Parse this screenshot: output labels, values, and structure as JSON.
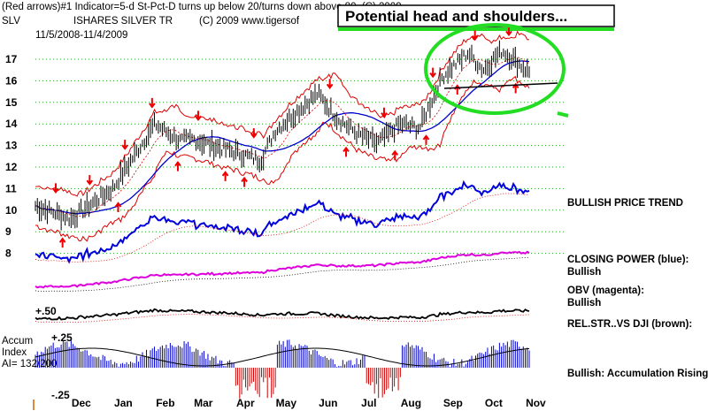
{
  "header": {
    "line1": "(Red arrows)#1 Indicator=5-d St-Pct-D turns up below 20/turns down above 80. (C) 2009",
    "ticker": "SLV",
    "name": "ISHARES SILVER TR",
    "copyright": "(C) 2009 www.tigersof",
    "date_range": "11/5/2008-11/4/2009"
  },
  "callout": "Potential head and shoulders...",
  "side_labels": {
    "trend": "BULLISH PRICE TREND",
    "closing_power_1": "CLOSING POWER (blue):",
    "closing_power_2": "Bullish",
    "obv_1": "OBV (magenta):",
    "obv_2": "Bullish",
    "relstr": "REL.STR..VS DJI (brown):",
    "accum": "Bullish: Accumulation Rising"
  },
  "accum_labels": {
    "l1": "Accum",
    "l2": "Index",
    "l3": "AI= 132/200",
    "plus50": "+.50",
    "plus25": "+.25",
    "minus25": "-.25"
  },
  "colors": {
    "price": "#000000",
    "bands": "#dd0000",
    "ma": "#0000cc",
    "closing_power": "#0000dd",
    "obv": "#dd00dd",
    "relstr": "#000000",
    "accum_pos": "#0000cc",
    "accum_neg": "#cc0000",
    "callout": "#22dd22",
    "grid": "#22aa22",
    "signal": "#ee0000"
  },
  "chart_data": {
    "type": "line",
    "ytick_labels": [
      "17",
      "16",
      "15",
      "14",
      "13",
      "12",
      "11",
      "10",
      "9",
      "8"
    ],
    "yticks": [
      17,
      16,
      15,
      14,
      13,
      12,
      11,
      10,
      9,
      8
    ],
    "ylim": [
      7.5,
      18
    ],
    "month_labels": [
      "Dec",
      "Jan",
      "Feb",
      "Mar",
      "Apr",
      "May",
      "Jun",
      "Jul",
      "Aug",
      "Sep",
      "Oct",
      "Nov"
    ],
    "grid": true,
    "price_series": {
      "x": [
        "2008-11-05",
        "2008-12-01",
        "2009-01-01",
        "2009-02-01",
        "2009-02-20",
        "2009-03-01",
        "2009-03-15",
        "2009-04-01",
        "2009-04-20",
        "2009-05-01",
        "2009-06-01",
        "2009-06-15",
        "2009-07-01",
        "2009-07-15",
        "2009-08-01",
        "2009-08-15",
        "2009-09-01",
        "2009-09-20",
        "2009-10-01",
        "2009-10-15",
        "2009-11-04"
      ],
      "close": [
        10.2,
        9.6,
        11.0,
        14.0,
        13.2,
        13.3,
        13.0,
        12.7,
        12.3,
        13.7,
        15.4,
        14.3,
        13.5,
        13.1,
        14.0,
        13.8,
        16.2,
        17.3,
        16.5,
        17.4,
        16.4
      ]
    },
    "signals": {
      "down": [
        "2008-11-20",
        "2008-12-15",
        "2009-01-10",
        "2009-01-30",
        "2009-03-05",
        "2009-04-15",
        "2009-06-10",
        "2009-07-20",
        "2009-08-25",
        "2009-09-25",
        "2009-10-20"
      ],
      "up": [
        "2008-11-25",
        "2009-01-05",
        "2009-02-18",
        "2009-03-25",
        "2009-04-08",
        "2009-06-22",
        "2009-07-28",
        "2009-08-20",
        "2009-09-12",
        "2009-10-25"
      ]
    }
  }
}
